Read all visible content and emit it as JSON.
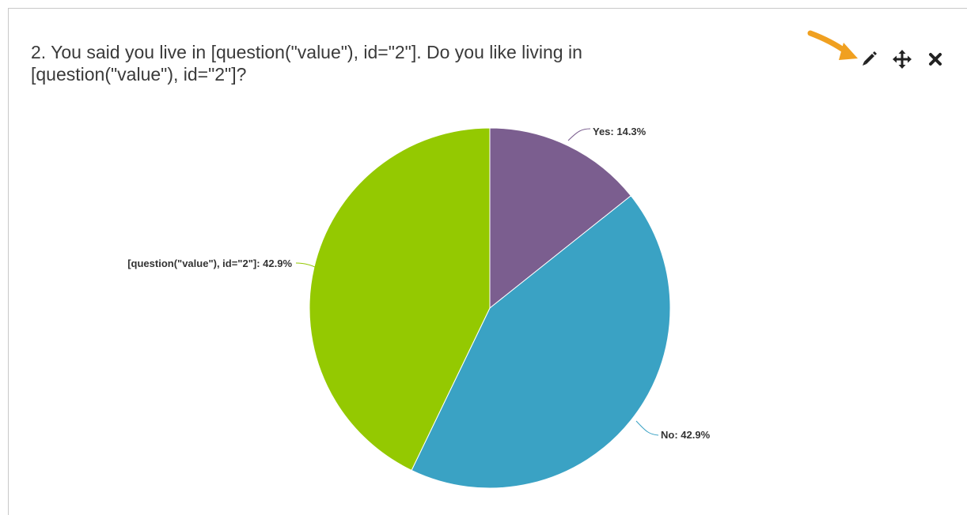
{
  "question": {
    "title": "2. You said you live in [question(\"value\"), id=\"2\"]. Do you like living in [question(\"value\"), id=\"2\"]?"
  },
  "toolbar": {
    "edit_icon": "pencil-icon",
    "move_icon": "move-arrows-icon",
    "close_icon": "close-icon",
    "annotation_color": "#f0a020"
  },
  "chart_data": {
    "type": "pie",
    "slices": [
      {
        "label": "Yes",
        "value": 14.3,
        "display": "Yes: 14.3%",
        "color": "#7b5e8f"
      },
      {
        "label": "No",
        "value": 42.9,
        "display": "No: 42.9%",
        "color": "#3aa2c4"
      },
      {
        "label": "[question(\"value\"), id=\"2\"]",
        "value": 42.9,
        "display": "[question(\"value\"), id=\"2\"]: 42.9%",
        "color": "#94c901"
      }
    ],
    "title": "",
    "legend": "none",
    "data_labels": "outside with leader lines"
  }
}
